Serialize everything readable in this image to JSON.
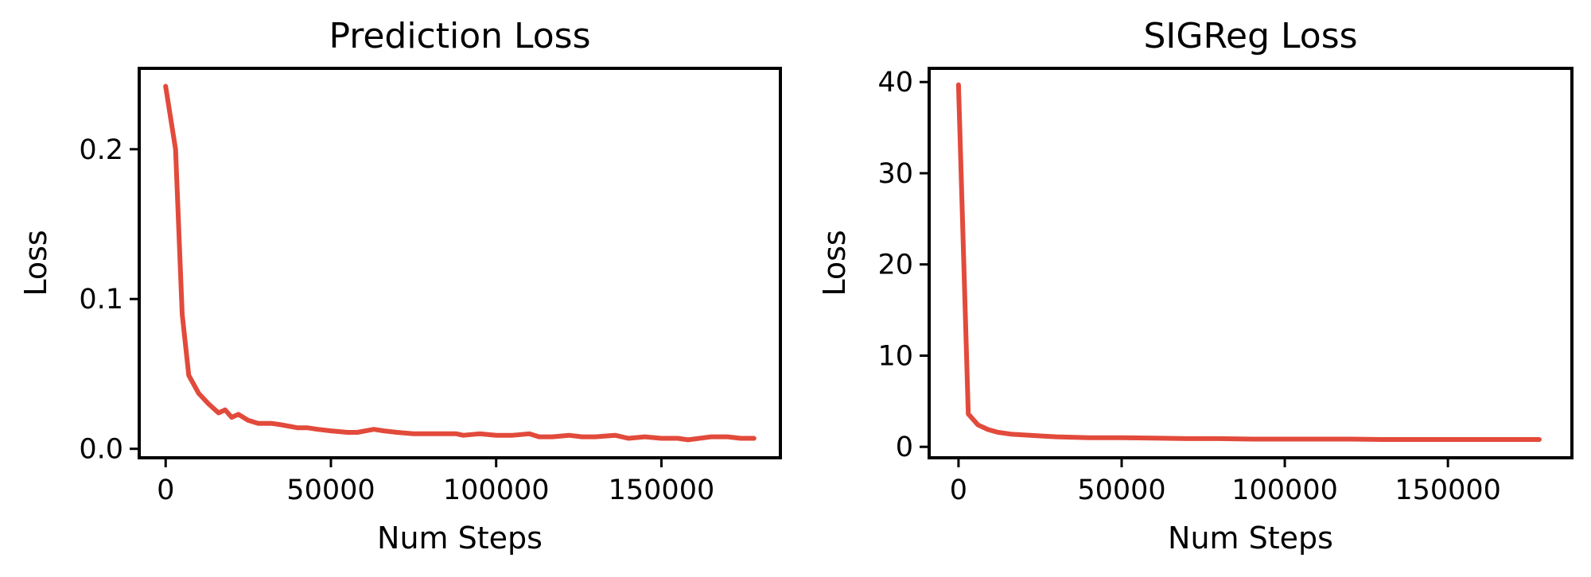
{
  "chart_data": [
    {
      "type": "line",
      "title": "Prediction Loss",
      "xlabel": "Num Steps",
      "ylabel": "Loss",
      "xlim": [
        -8000,
        186000
      ],
      "ylim": [
        -0.006,
        0.254
      ],
      "xticks": [
        0,
        50000,
        100000,
        150000
      ],
      "xtick_labels": [
        "0",
        "50000",
        "100000",
        "150000"
      ],
      "yticks": [
        0.0,
        0.1,
        0.2
      ],
      "ytick_labels": [
        "0.0",
        "0.1",
        "0.2"
      ],
      "grid": false,
      "color": "#e24a3b",
      "x": [
        0,
        3000,
        5000,
        7000,
        10000,
        13000,
        16000,
        18000,
        20000,
        22000,
        25000,
        28000,
        32000,
        35000,
        40000,
        43000,
        46000,
        50000,
        55000,
        58000,
        63000,
        66000,
        70000,
        75000,
        80000,
        88000,
        90000,
        95000,
        100000,
        105000,
        110000,
        113000,
        117000,
        122000,
        126000,
        130000,
        136000,
        140000,
        145000,
        150000,
        155000,
        158000,
        165000,
        170000,
        174000,
        178000
      ],
      "y": [
        0.242,
        0.2,
        0.09,
        0.049,
        0.037,
        0.03,
        0.024,
        0.026,
        0.021,
        0.023,
        0.019,
        0.017,
        0.017,
        0.016,
        0.014,
        0.014,
        0.013,
        0.012,
        0.011,
        0.011,
        0.013,
        0.012,
        0.011,
        0.01,
        0.01,
        0.01,
        0.009,
        0.01,
        0.009,
        0.009,
        0.01,
        0.008,
        0.008,
        0.009,
        0.008,
        0.008,
        0.009,
        0.007,
        0.008,
        0.007,
        0.007,
        0.006,
        0.008,
        0.008,
        0.007,
        0.007
      ]
    },
    {
      "type": "line",
      "title": "SIGReg Loss",
      "xlabel": "Num Steps",
      "ylabel": "Loss",
      "xlim": [
        -9000,
        188000
      ],
      "ylim": [
        -1.2,
        41.5
      ],
      "xticks": [
        0,
        50000,
        100000,
        150000
      ],
      "xtick_labels": [
        "0",
        "50000",
        "100000",
        "150000"
      ],
      "yticks": [
        0,
        10,
        20,
        30,
        40
      ],
      "ytick_labels": [
        "0",
        "10",
        "20",
        "30",
        "40"
      ],
      "grid": false,
      "color": "#e24a3b",
      "x": [
        0,
        3000,
        6000,
        9000,
        12000,
        16000,
        20000,
        25000,
        30000,
        40000,
        50000,
        60000,
        70000,
        80000,
        90000,
        100000,
        110000,
        120000,
        130000,
        140000,
        150000,
        160000,
        170000,
        178000
      ],
      "y": [
        39.7,
        3.6,
        2.4,
        1.9,
        1.6,
        1.4,
        1.3,
        1.2,
        1.1,
        1.0,
        1.0,
        0.95,
        0.9,
        0.9,
        0.85,
        0.85,
        0.85,
        0.85,
        0.8,
        0.8,
        0.8,
        0.8,
        0.8,
        0.8
      ]
    }
  ]
}
